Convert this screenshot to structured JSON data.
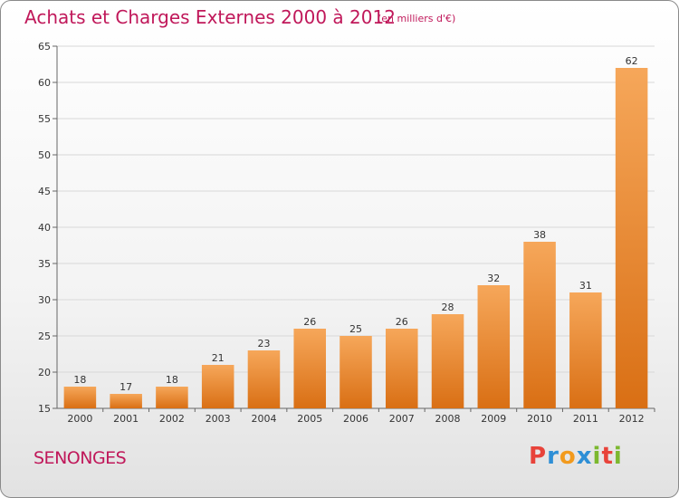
{
  "header": {
    "title": "Achats et Charges Externes 2000 à 2012",
    "unit": "(en milliers d'€)"
  },
  "footer": {
    "commune": "SENONGES",
    "brand": [
      "P",
      "r",
      "o",
      "x",
      "i",
      "t",
      "i"
    ],
    "brand_colors": [
      "#e8433a",
      "#2e8fd6",
      "#f29a1d",
      "#2e8fd6",
      "#7cb82f",
      "#e8433a",
      "#7cb82f"
    ]
  },
  "colors": {
    "bar_top": "#f6a75a",
    "bar_bottom": "#d96f14",
    "title": "#c0185a",
    "grid": "#d8d8d8"
  },
  "chart_data": {
    "type": "bar",
    "title": "Achats et Charges Externes 2000 à 2012",
    "subtitle": "(en milliers d'€)",
    "categories": [
      "2000",
      "2001",
      "2002",
      "2003",
      "2004",
      "2005",
      "2006",
      "2007",
      "2008",
      "2009",
      "2010",
      "2011",
      "2012"
    ],
    "values": [
      18,
      17,
      18,
      21,
      23,
      26,
      25,
      26,
      28,
      32,
      38,
      31,
      62
    ],
    "ylim": [
      15,
      65
    ],
    "yticks": [
      15,
      20,
      25,
      30,
      35,
      40,
      45,
      50,
      55,
      60,
      65
    ],
    "grid": true,
    "data_labels": true
  }
}
